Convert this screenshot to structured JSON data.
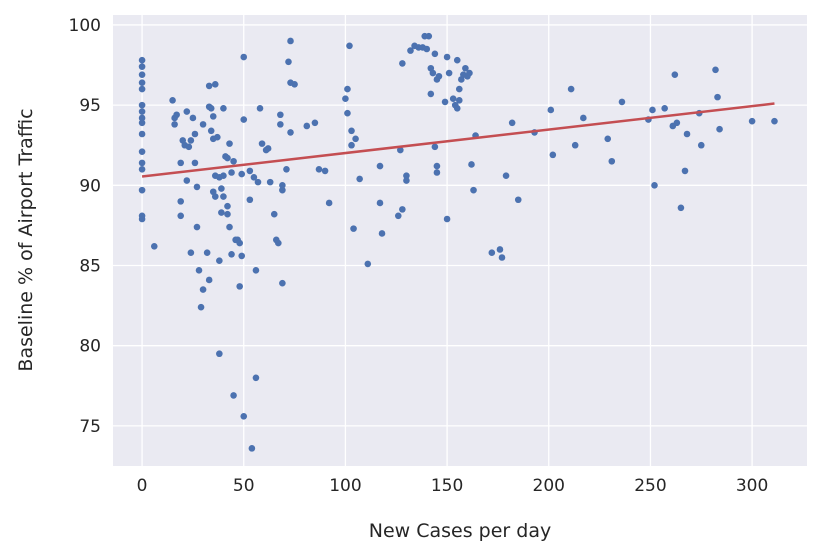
{
  "chart_data": {
    "type": "scatter",
    "x_label": "New Cases per day",
    "y_label": "Baseline % of Airport Traffic",
    "xlim": [
      -14.3,
      327
    ],
    "ylim": [
      72.5,
      100.62
    ],
    "xticks": [
      0,
      50,
      100,
      150,
      200,
      250,
      300
    ],
    "yticks": [
      75,
      80,
      85,
      90,
      95,
      100
    ],
    "grid": true,
    "background": "#eaeaf2",
    "series": [
      {
        "color": "#4c72b0",
        "x": [
          0,
          0,
          0,
          0,
          0,
          0,
          0,
          0,
          0,
          0,
          0,
          0,
          0,
          0,
          0,
          0,
          6,
          15,
          16,
          16,
          17,
          19,
          19,
          19,
          20,
          21,
          22,
          22,
          23,
          24,
          24,
          25,
          26,
          26,
          27,
          27,
          28,
          29,
          30,
          30,
          32,
          33,
          33,
          33,
          34,
          34,
          35,
          35,
          35,
          36,
          36,
          36,
          37,
          38,
          38,
          38,
          39,
          39,
          40,
          40,
          40,
          41,
          42,
          42,
          42,
          43,
          43,
          44,
          44,
          45,
          45,
          46,
          47,
          48,
          48,
          49,
          49,
          50,
          50,
          50,
          53,
          53,
          54,
          55,
          56,
          56,
          57,
          58,
          59,
          61,
          62,
          63,
          65,
          66,
          67,
          68,
          68,
          69,
          69,
          69,
          71,
          72,
          73,
          73,
          73,
          75,
          81,
          85,
          87,
          90,
          92,
          100,
          101,
          101,
          102,
          103,
          103,
          104,
          105,
          107,
          111,
          117,
          117,
          118,
          126,
          127,
          128,
          128,
          130,
          130,
          132,
          134,
          136,
          138,
          139,
          140,
          141,
          142,
          142,
          143,
          144,
          144,
          145,
          145,
          145,
          146,
          149,
          150,
          150,
          151,
          153,
          154,
          155,
          155,
          156,
          156,
          157,
          158,
          159,
          160,
          161,
          162,
          163,
          164,
          172,
          176,
          177,
          179,
          182,
          185,
          193,
          201,
          202,
          211,
          213,
          217,
          229,
          231,
          236,
          249,
          251,
          252,
          257,
          261,
          262,
          263,
          265,
          267,
          268,
          274,
          275,
          282,
          283,
          284,
          300,
          311
        ],
        "values": [
          97.8,
          97.4,
          96.9,
          96.4,
          96.0,
          95.0,
          94.6,
          94.2,
          93.9,
          93.2,
          92.1,
          91.4,
          91.0,
          89.7,
          88.1,
          87.9,
          86.2,
          95.3,
          94.2,
          93.8,
          94.4,
          91.4,
          89.0,
          88.1,
          92.8,
          92.5,
          94.6,
          90.3,
          92.4,
          92.8,
          85.8,
          94.2,
          93.2,
          91.4,
          89.9,
          87.4,
          84.7,
          82.4,
          93.8,
          83.5,
          85.8,
          84.1,
          96.2,
          94.9,
          94.8,
          93.4,
          94.3,
          92.9,
          89.6,
          96.3,
          90.6,
          89.3,
          93.0,
          90.5,
          85.3,
          79.5,
          88.3,
          89.8,
          94.8,
          90.6,
          89.3,
          91.8,
          91.7,
          88.7,
          88.2,
          87.4,
          92.6,
          90.8,
          85.7,
          76.9,
          91.5,
          86.6,
          86.6,
          86.4,
          83.7,
          85.6,
          90.7,
          94.1,
          98.0,
          75.6,
          90.9,
          89.1,
          73.6,
          90.5,
          78.0,
          84.7,
          90.2,
          94.8,
          92.6,
          92.2,
          92.3,
          90.2,
          88.2,
          86.6,
          86.4,
          93.8,
          94.4,
          89.7,
          90.0,
          83.9,
          91.0,
          97.7,
          96.4,
          93.3,
          99.0,
          96.3,
          93.7,
          93.9,
          91.0,
          90.9,
          88.9,
          95.4,
          94.5,
          96.0,
          98.7,
          92.5,
          93.4,
          87.3,
          92.9,
          90.4,
          85.1,
          91.2,
          88.9,
          87.0,
          88.1,
          92.2,
          88.5,
          97.6,
          90.6,
          90.3,
          98.4,
          98.7,
          98.6,
          98.6,
          99.3,
          98.5,
          99.3,
          97.3,
          95.7,
          97.0,
          98.2,
          92.4,
          91.2,
          96.6,
          90.8,
          96.8,
          95.2,
          98.0,
          87.9,
          97.0,
          95.4,
          95.0,
          97.8,
          94.8,
          95.3,
          96.0,
          96.6,
          96.9,
          97.3,
          96.8,
          97.0,
          91.3,
          89.7,
          93.1,
          85.8,
          86.0,
          85.5,
          90.6,
          93.9,
          89.1,
          93.3,
          94.7,
          91.9,
          96.0,
          92.5,
          94.2,
          92.9,
          91.5,
          95.2,
          94.1,
          94.7,
          90.0,
          94.8,
          93.7,
          96.9,
          93.9,
          88.6,
          90.9,
          93.2,
          94.5,
          92.5,
          97.2,
          95.5,
          93.5,
          94.0,
          94.0
        ]
      }
    ],
    "trend_line": {
      "color": "#c44e52",
      "x": [
        0,
        311
      ],
      "values": [
        90.55,
        95.1
      ]
    }
  }
}
